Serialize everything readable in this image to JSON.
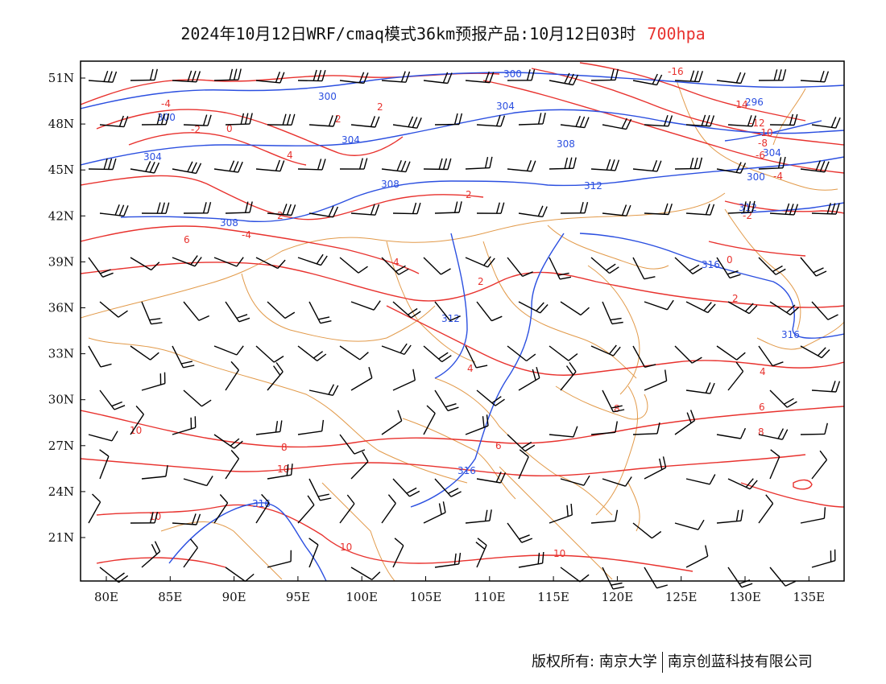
{
  "title": {
    "main": "2024年10月12日WRF/cmaq模式36km预报产品:10月12日03时",
    "level": "700hpa"
  },
  "footer": {
    "copyright": "版权所有: 南京大学",
    "company": "南京创蓝科技有限公司"
  },
  "axes": {
    "lon_ticks": [
      "80E",
      "85E",
      "90E",
      "95E",
      "100E",
      "105E",
      "110E",
      "115E",
      "120E",
      "125E",
      "130E",
      "135E"
    ],
    "lat_ticks": [
      "51N",
      "48N",
      "45N",
      "42N",
      "39N",
      "36N",
      "33N",
      "30N",
      "27N",
      "24N",
      "21N"
    ]
  },
  "colors": {
    "height_contour": "#2b4fe0",
    "temperature_contour": "#e8322e",
    "boundary": "#e29a4a",
    "wind_barb": "#000000"
  },
  "height_labels": [
    "300",
    "300",
    "300",
    "304",
    "304",
    "304",
    "308",
    "308",
    "308",
    "312",
    "312",
    "312",
    "316",
    "316",
    "316",
    "316",
    "296",
    "304",
    "300"
  ],
  "temp_labels": [
    "-4",
    "-2",
    "0",
    "2",
    "4",
    "2",
    "-4",
    "2",
    "6",
    "2",
    "4",
    "-16",
    "-14",
    "-12",
    "-10",
    "-8",
    "-6",
    "-4",
    "-2",
    "0",
    "2",
    "4",
    "6",
    "8",
    "2",
    "4",
    "6",
    "8",
    "10",
    "10",
    "10",
    "8",
    "10",
    "10"
  ]
}
